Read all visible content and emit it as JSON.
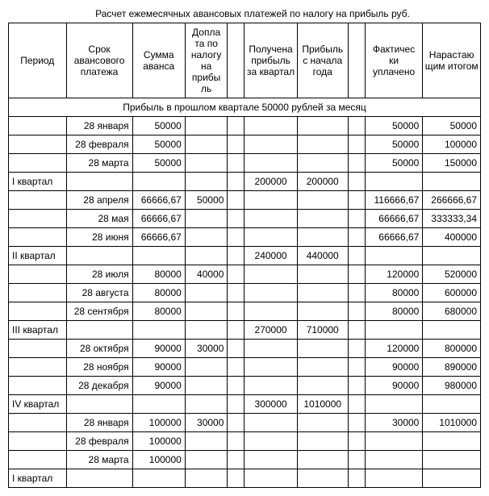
{
  "title": "Расчет ежемесячных авансовых платежей по налогу на прибыль   руб.",
  "headers": {
    "c0": "Период",
    "c1": "Срок авансового платежа",
    "c2": "Сумма аванса",
    "c3": "Допла та по налогу на прибы ль",
    "c4": "",
    "c5": "Получена прибыль за квартал",
    "c6": "Прибыль с начала года",
    "c7": "",
    "c8": "Фактичес ки уплачено",
    "c9": "Нарастаю щим итогом"
  },
  "subheader": "Прибыль в прошлом квартале 50000 рублей за месяц",
  "rows": [
    {
      "c0": "",
      "c1": "28 января",
      "c2": "50000",
      "c3": "",
      "c5": "",
      "c6": "",
      "c8": "50000",
      "c9": "50000"
    },
    {
      "c0": "",
      "c1": "28 февраля",
      "c2": "50000",
      "c3": "",
      "c5": "",
      "c6": "",
      "c8": "50000",
      "c9": "100000"
    },
    {
      "c0": "",
      "c1": "28 марта",
      "c2": "50000",
      "c3": "",
      "c5": "",
      "c6": "",
      "c8": "50000",
      "c9": "150000"
    },
    {
      "c0": "I квартал",
      "c1": "",
      "c2": "",
      "c3": "",
      "c5": "200000",
      "c6": "200000",
      "c8": "",
      "c9": ""
    },
    {
      "c0": "",
      "c1": "28 апреля",
      "c2": "66666,67",
      "c3": "50000",
      "c5": "",
      "c6": "",
      "c8": "116666,67",
      "c9": "266666,67"
    },
    {
      "c0": "",
      "c1": "28 мая",
      "c2": "66666,67",
      "c3": "",
      "c5": "",
      "c6": "",
      "c8": "66666,67",
      "c9": "333333,34"
    },
    {
      "c0": "",
      "c1": "28 июня",
      "c2": "66666,67",
      "c3": "",
      "c5": "",
      "c6": "",
      "c8": "66666,67",
      "c9": "400000"
    },
    {
      "c0": "II квартал",
      "c1": "",
      "c2": "",
      "c3": "",
      "c5": "240000",
      "c6": "440000",
      "c8": "",
      "c9": ""
    },
    {
      "c0": "",
      "c1": "28 июля",
      "c2": "80000",
      "c3": "40000",
      "c5": "",
      "c6": "",
      "c8": "120000",
      "c9": "520000"
    },
    {
      "c0": "",
      "c1": "28 августа",
      "c2": "80000",
      "c3": "",
      "c5": "",
      "c6": "",
      "c8": "80000",
      "c9": "600000"
    },
    {
      "c0": "",
      "c1": "28 сентября",
      "c2": "80000",
      "c3": "",
      "c5": "",
      "c6": "",
      "c8": "80000",
      "c9": "680000"
    },
    {
      "c0": "III квартал",
      "c1": "",
      "c2": "",
      "c3": "",
      "c5": "270000",
      "c6": "710000",
      "c8": "",
      "c9": ""
    },
    {
      "c0": "",
      "c1": "28 октября",
      "c2": "90000",
      "c3": "30000",
      "c5": "",
      "c6": "",
      "c8": "120000",
      "c9": "800000"
    },
    {
      "c0": "",
      "c1": "28 ноября",
      "c2": "90000",
      "c3": "",
      "c5": "",
      "c6": "",
      "c8": "90000",
      "c9": "890000"
    },
    {
      "c0": "",
      "c1": "28 декабря",
      "c2": "90000",
      "c3": "",
      "c5": "",
      "c6": "",
      "c8": "90000",
      "c9": "980000"
    },
    {
      "c0": "IV квартал",
      "c1": "",
      "c2": "",
      "c3": "",
      "c5": "300000",
      "c6": "1010000",
      "c8": "",
      "c9": ""
    },
    {
      "c0": "",
      "c1": "28 января",
      "c2": "100000",
      "c3": "30000",
      "c5": "",
      "c6": "",
      "c8": "30000",
      "c9": "1010000"
    },
    {
      "c0": "",
      "c1": "28 февраля",
      "c2": "100000",
      "c3": "",
      "c5": "",
      "c6": "",
      "c8": "",
      "c9": ""
    },
    {
      "c0": "",
      "c1": "28 марта",
      "c2": "100000",
      "c3": "",
      "c5": "",
      "c6": "",
      "c8": "",
      "c9": ""
    },
    {
      "c0": "I квартал",
      "c1": "",
      "c2": "",
      "c3": "",
      "c5": "",
      "c6": "",
      "c8": "",
      "c9": ""
    }
  ]
}
